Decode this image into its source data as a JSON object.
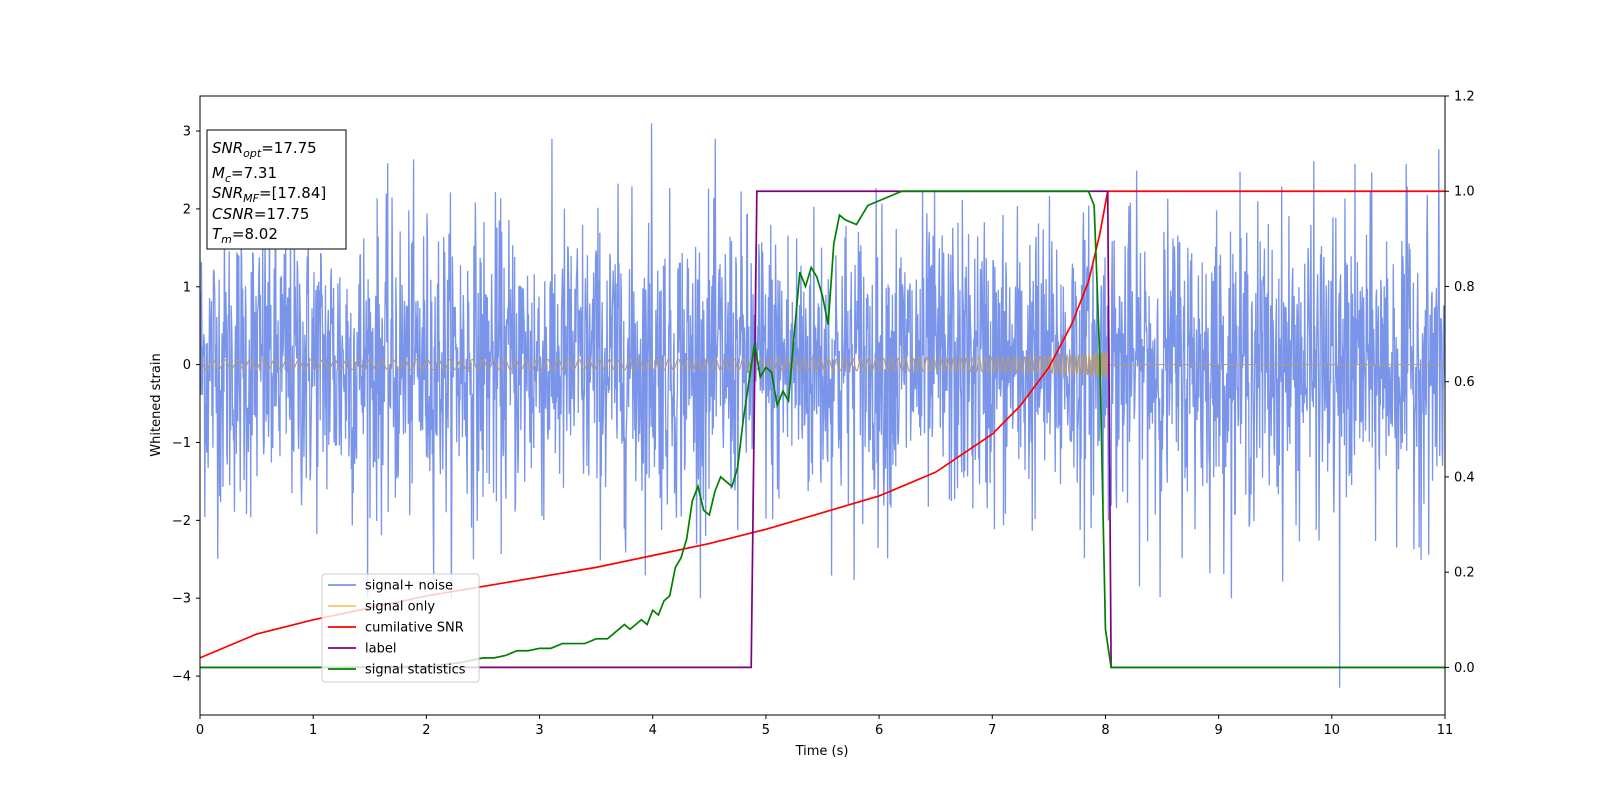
{
  "chart_data": {
    "type": "line",
    "xlabel": "Time (s)",
    "ylabel": "Whitened strain",
    "xlim": [
      0,
      11
    ],
    "ylim_left": [
      -4.5,
      3.45
    ],
    "ylim_right": [
      -0.1,
      1.2
    ],
    "x_ticks": [
      "0",
      "1",
      "2",
      "3",
      "4",
      "5",
      "6",
      "7",
      "8",
      "9",
      "10",
      "11"
    ],
    "y_ticks_left": [
      "3",
      "2",
      "1",
      "0",
      "−1",
      "−2",
      "−3",
      "−4"
    ],
    "y_ticks_right": [
      "1.2",
      "1.0",
      "0.8",
      "0.6",
      "0.4",
      "0.2",
      "0.0"
    ],
    "legend_position": "lower-left",
    "info_box": {
      "lines": [
        {
          "main": "SNR",
          "sub": "opt",
          "value": "=17.75"
        },
        {
          "main": "M",
          "sub": "c",
          "value": "=7.31"
        },
        {
          "main": "SNR",
          "sub": "MF",
          "value": "=[17.84]"
        },
        {
          "main": "CSNR",
          "sub": "",
          "value": "=17.75"
        },
        {
          "main": "T",
          "sub": "m",
          "value": "=8.02"
        }
      ]
    },
    "series": [
      {
        "name": "signal+ noise",
        "color": "#7994e8",
        "axis": "left",
        "kind": "noise",
        "envelope_sd": 0.95,
        "x_range": [
          0,
          11
        ],
        "extremes": [
          {
            "x": 3.99,
            "y": 3.1
          },
          {
            "x": 10.07,
            "y": -4.15
          }
        ]
      },
      {
        "name": "signal only",
        "color": "#f7c56e",
        "overlap_color": "#b99a74",
        "axis": "left",
        "kind": "chirp",
        "x_range": [
          0,
          8.02
        ],
        "start_amplitude": 0.06,
        "end_amplitude": 0.85,
        "after_merger": {
          "x": [
            8.02,
            11
          ],
          "y": 0
        }
      },
      {
        "name": "cumilative SNR",
        "color": "#ff0000",
        "axis": "right",
        "x": [
          0,
          0.5,
          1,
          1.5,
          2,
          2.5,
          3,
          3.5,
          4,
          4.5,
          5,
          5.5,
          6,
          6.5,
          7,
          7.25,
          7.5,
          7.7,
          7.85,
          7.95,
          8.02,
          11
        ],
        "y": [
          0.02,
          0.07,
          0.1,
          0.125,
          0.15,
          0.17,
          0.19,
          0.21,
          0.235,
          0.26,
          0.29,
          0.325,
          0.36,
          0.41,
          0.49,
          0.55,
          0.63,
          0.72,
          0.81,
          0.91,
          1.0,
          1.0
        ]
      },
      {
        "name": "label",
        "color": "#800080",
        "axis": "right",
        "x": [
          0,
          4.87,
          4.92,
          8.02,
          8.05,
          11
        ],
        "y": [
          0,
          0,
          1,
          1,
          0,
          0
        ]
      },
      {
        "name": "signal statistics",
        "color": "#008000",
        "axis": "right",
        "x": [
          0,
          1,
          2,
          2.3,
          2.5,
          2.6,
          2.7,
          2.8,
          2.9,
          3.0,
          3.1,
          3.2,
          3.3,
          3.4,
          3.5,
          3.6,
          3.65,
          3.7,
          3.75,
          3.8,
          3.85,
          3.9,
          3.95,
          4.0,
          4.05,
          4.1,
          4.15,
          4.2,
          4.25,
          4.3,
          4.35,
          4.4,
          4.45,
          4.5,
          4.55,
          4.6,
          4.65,
          4.7,
          4.75,
          4.8,
          4.85,
          4.9,
          4.95,
          5.0,
          5.05,
          5.1,
          5.15,
          5.2,
          5.25,
          5.3,
          5.35,
          5.4,
          5.45,
          5.5,
          5.55,
          5.6,
          5.65,
          5.7,
          5.8,
          5.9,
          6.0,
          6.1,
          6.2,
          6.3,
          6.4,
          6.5,
          6.6,
          7.0,
          7.5,
          7.85,
          7.9,
          7.95,
          8.0,
          8.05,
          11
        ],
        "y": [
          0,
          0,
          0.002,
          0.01,
          0.02,
          0.02,
          0.025,
          0.035,
          0.035,
          0.04,
          0.04,
          0.05,
          0.05,
          0.05,
          0.06,
          0.06,
          0.07,
          0.08,
          0.09,
          0.08,
          0.09,
          0.1,
          0.09,
          0.12,
          0.11,
          0.14,
          0.15,
          0.21,
          0.23,
          0.27,
          0.35,
          0.38,
          0.33,
          0.32,
          0.37,
          0.4,
          0.39,
          0.38,
          0.42,
          0.52,
          0.6,
          0.68,
          0.61,
          0.63,
          0.62,
          0.55,
          0.58,
          0.56,
          0.7,
          0.83,
          0.8,
          0.84,
          0.82,
          0.78,
          0.72,
          0.89,
          0.95,
          0.94,
          0.93,
          0.97,
          0.98,
          0.99,
          1.0,
          1.0,
          1.0,
          1.0,
          1.0,
          1.0,
          1.0,
          1.0,
          0.97,
          0.65,
          0.08,
          0.0,
          0.0
        ]
      }
    ]
  }
}
